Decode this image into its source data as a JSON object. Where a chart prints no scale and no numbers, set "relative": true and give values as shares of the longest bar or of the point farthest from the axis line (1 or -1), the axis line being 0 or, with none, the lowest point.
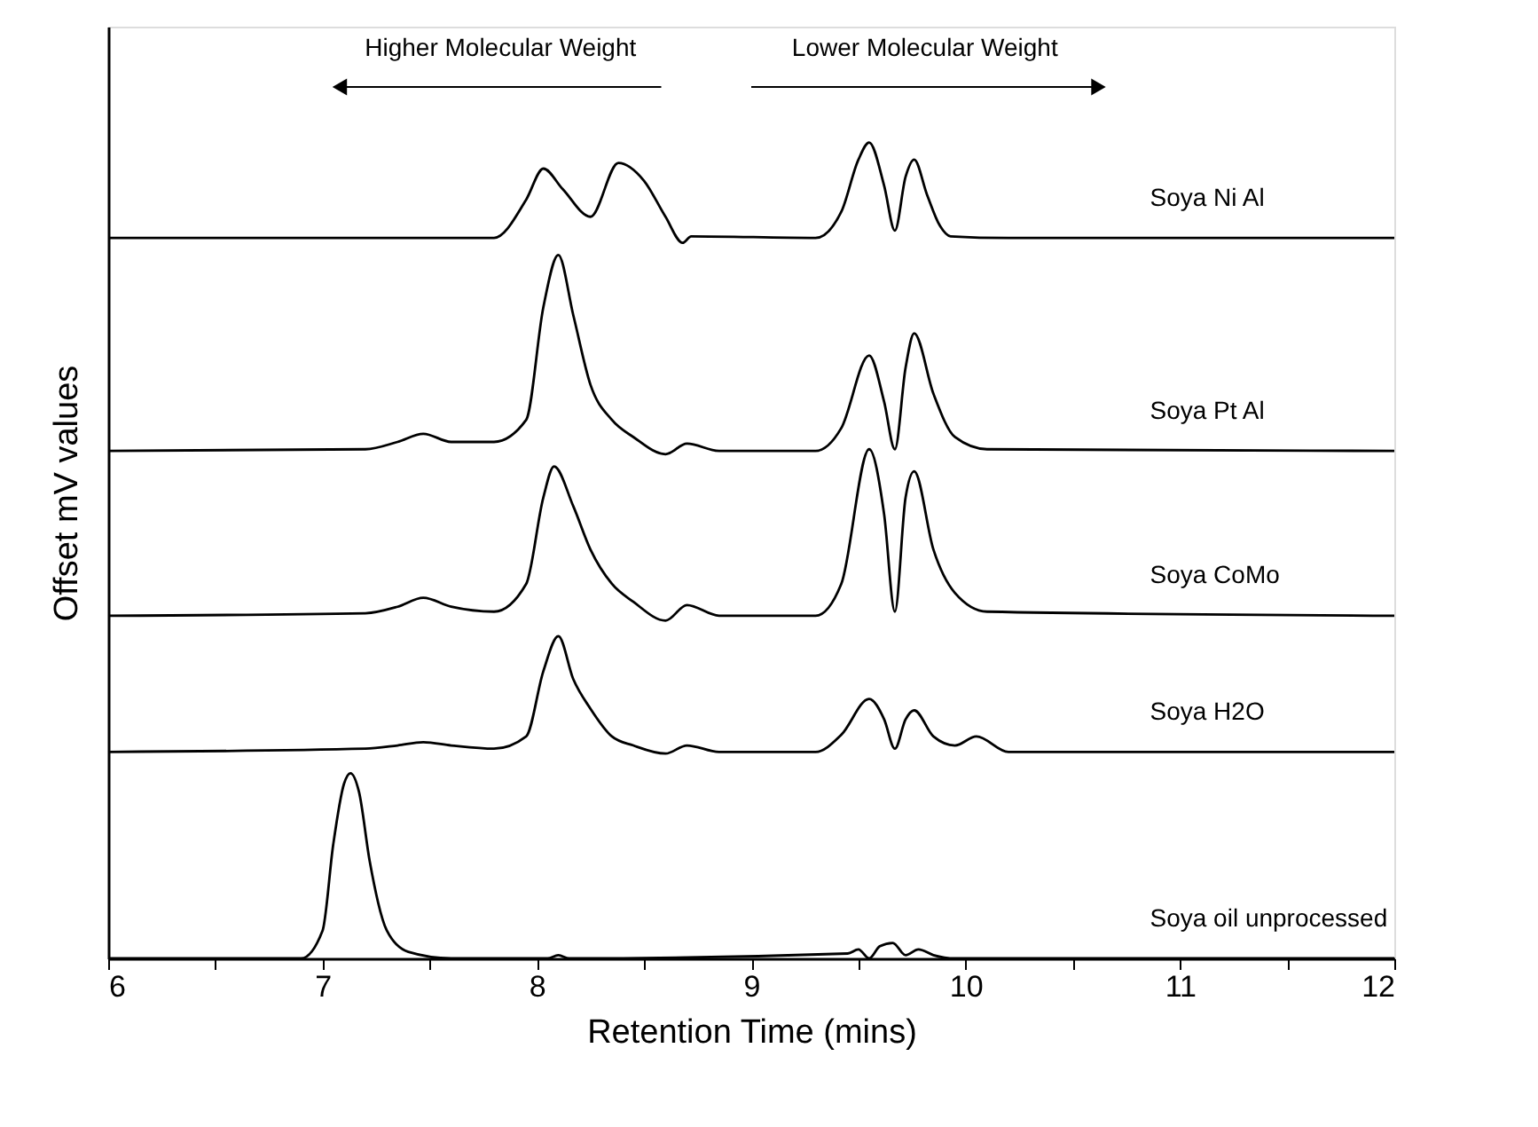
{
  "chart_data": {
    "type": "line",
    "relative": true,
    "xlabel": "Retention Time (mins)",
    "ylabel": "Offset mV values",
    "annotations": [
      "Higher Molecular Weight",
      "Lower Molecular Weight"
    ],
    "xlim": [
      6,
      12
    ],
    "xticks": [
      6,
      {
        "value": 6.5,
        "label": null
      },
      7,
      {
        "value": 7.5,
        "label": null
      },
      8,
      {
        "value": 8.5,
        "label": null
      },
      9,
      {
        "value": 9.5,
        "label": null
      },
      10,
      {
        "value": 10.5,
        "label": null
      },
      11,
      {
        "value": 11.5,
        "label": null
      },
      12
    ],
    "grid": false,
    "marker": "none",
    "line_style": "solid",
    "tick_labels": "x",
    "series": [
      {
        "name": "Soya Ni Al",
        "color": "#000000",
        "x": [
          6,
          7,
          7.8,
          7.95,
          8.03,
          8.12,
          8.25,
          8.38,
          8.5,
          8.6,
          8.68,
          8.72,
          9.3,
          9.42,
          9.5,
          9.55,
          9.62,
          9.67,
          9.72,
          9.76,
          9.82,
          9.88,
          9.93,
          10.2,
          12
        ],
        "values": [
          0.883,
          0.883,
          0.883,
          0.93,
          0.968,
          0.943,
          0.909,
          0.975,
          0.953,
          0.909,
          0.877,
          0.885,
          0.883,
          0.915,
          0.979,
          1.0,
          0.947,
          0.892,
          0.958,
          0.979,
          0.936,
          0.898,
          0.885,
          0.883,
          0.883
        ]
      },
      {
        "name": "Soya Pt Al",
        "color": "#000000",
        "x": [
          6,
          7.2,
          7.35,
          7.47,
          7.6,
          7.8,
          7.95,
          8.03,
          8.1,
          8.17,
          8.25,
          8.35,
          8.45,
          8.6,
          8.7,
          8.85,
          9.3,
          9.42,
          9.55,
          9.62,
          9.67,
          9.72,
          9.76,
          9.85,
          9.95,
          10.1,
          12
        ],
        "values": [
          0.622,
          0.624,
          0.633,
          0.643,
          0.633,
          0.633,
          0.66,
          0.798,
          0.862,
          0.788,
          0.703,
          0.66,
          0.639,
          0.618,
          0.631,
          0.622,
          0.622,
          0.65,
          0.739,
          0.682,
          0.624,
          0.724,
          0.766,
          0.692,
          0.639,
          0.624,
          0.622
        ]
      },
      {
        "name": "Soya CoMo",
        "color": "#000000",
        "x": [
          6,
          7.2,
          7.35,
          7.47,
          7.6,
          7.8,
          7.95,
          8.03,
          8.08,
          8.17,
          8.25,
          8.35,
          8.45,
          8.6,
          8.7,
          8.85,
          9.3,
          9.42,
          9.55,
          9.62,
          9.67,
          9.72,
          9.76,
          9.85,
          9.95,
          10.1,
          12
        ],
        "values": [
          0.42,
          0.423,
          0.431,
          0.442,
          0.431,
          0.425,
          0.459,
          0.565,
          0.603,
          0.554,
          0.501,
          0.459,
          0.437,
          0.414,
          0.433,
          0.42,
          0.42,
          0.459,
          0.624,
          0.544,
          0.425,
          0.565,
          0.597,
          0.501,
          0.448,
          0.425,
          0.42
        ]
      },
      {
        "name": "Soya H2O",
        "color": "#000000",
        "x": [
          6,
          7.2,
          7.35,
          7.47,
          7.6,
          7.8,
          7.95,
          8.03,
          8.1,
          8.17,
          8.25,
          8.35,
          8.45,
          8.6,
          8.7,
          8.85,
          9.3,
          9.42,
          9.55,
          9.62,
          9.67,
          9.72,
          9.76,
          9.85,
          9.95,
          10.05,
          10.2,
          12
        ],
        "values": [
          0.253,
          0.257,
          0.261,
          0.265,
          0.261,
          0.257,
          0.272,
          0.352,
          0.395,
          0.342,
          0.306,
          0.272,
          0.261,
          0.251,
          0.261,
          0.253,
          0.253,
          0.274,
          0.318,
          0.293,
          0.257,
          0.293,
          0.304,
          0.272,
          0.261,
          0.272,
          0.253,
          0.253
        ]
      },
      {
        "name": "Soya oil unprocessed",
        "color": "#000000",
        "x": [
          6,
          6.9,
          7.0,
          7.05,
          7.1,
          7.13,
          7.17,
          7.22,
          7.3,
          7.4,
          7.6,
          8.05,
          8.1,
          8.15,
          9.45,
          9.5,
          9.55,
          9.6,
          9.66,
          9.72,
          9.78,
          9.85,
          9.95,
          12
        ],
        "values": [
          0,
          0,
          0.034,
          0.14,
          0.214,
          0.227,
          0.204,
          0.119,
          0.034,
          0.008,
          0,
          0,
          0.004,
          0,
          0.006,
          0.011,
          0,
          0.015,
          0.019,
          0.004,
          0.011,
          0.004,
          0,
          0
        ]
      }
    ]
  }
}
